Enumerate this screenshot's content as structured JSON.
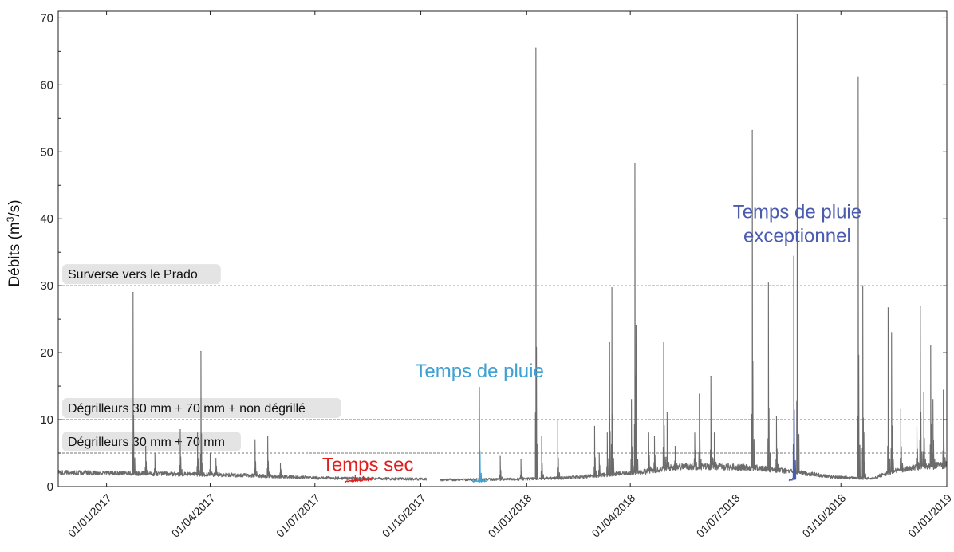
{
  "chart_data": {
    "type": "line",
    "title": "",
    "xlabel": "",
    "ylabel": "Débits (m³/s)",
    "ylabel_parts": {
      "pre": "Débits (m",
      "sup": "3",
      "post": "/s)"
    },
    "xlim": [
      "2016-11-20",
      "2019-01-01"
    ],
    "ylim": [
      0,
      71
    ],
    "y_ticks": [
      0,
      10,
      20,
      30,
      40,
      50,
      60,
      70
    ],
    "x_ticks": [
      {
        "date": "2017-01-01",
        "label": "01/01/2017"
      },
      {
        "date": "2017-04-01",
        "label": "01/04/2017"
      },
      {
        "date": "2017-07-01",
        "label": "01/07/2017"
      },
      {
        "date": "2017-10-01",
        "label": "01/10/2017"
      },
      {
        "date": "2018-01-01",
        "label": "01/01/2018"
      },
      {
        "date": "2018-04-01",
        "label": "01/04/2018"
      },
      {
        "date": "2018-07-01",
        "label": "01/07/2018"
      },
      {
        "date": "2018-10-01",
        "label": "01/10/2018"
      },
      {
        "date": "2019-01-01",
        "label": "01/01/2019"
      }
    ],
    "grid": false,
    "thresholds": [
      {
        "label": "Surverse vers le Prado",
        "value": 30
      },
      {
        "label": "Dégrilleurs 30 mm + 70 mm + non dégrillé",
        "value": 10
      },
      {
        "label": "Dégrilleurs 30 mm + 70 mm",
        "value": 5
      }
    ],
    "series": [
      {
        "color": "#6b6b6b",
        "segments": [
          {
            "start": "2016-11-20",
            "end": "2017-10-06",
            "base": [
              [
                0,
                2.1
              ],
              [
                0.3,
                1.9
              ],
              [
                0.5,
                1.7
              ],
              [
                0.7,
                1.3
              ],
              [
                0.85,
                1.2
              ],
              [
                1,
                1.1
              ]
            ],
            "spikes": [
              [
                "2017-01-24",
                29
              ],
              [
                "2017-02-04",
                6
              ],
              [
                "2017-02-12",
                5
              ],
              [
                "2017-03-06",
                8.5
              ],
              [
                "2017-03-21",
                8
              ],
              [
                "2017-03-24",
                20.2
              ],
              [
                "2017-04-01",
                5
              ],
              [
                "2017-04-06",
                4.2
              ],
              [
                "2017-05-10",
                7
              ],
              [
                "2017-05-21",
                7.5
              ],
              [
                "2017-06-01",
                3.5
              ]
            ]
          },
          {
            "start": "2017-10-18",
            "end": "2019-01-01",
            "base": [
              [
                0,
                1.0
              ],
              [
                0.15,
                1.1
              ],
              [
                0.25,
                1.3
              ],
              [
                0.3,
                1.6
              ],
              [
                0.4,
                2.2
              ],
              [
                0.47,
                3.0
              ],
              [
                0.55,
                3.0
              ],
              [
                0.62,
                2.8
              ],
              [
                0.7,
                2.2
              ],
              [
                0.78,
                1.4
              ],
              [
                0.85,
                1.2
              ],
              [
                0.9,
                2.4
              ],
              [
                0.95,
                3.0
              ],
              [
                1,
                3.2
              ]
            ],
            "spikes": [
              [
                "2017-12-09",
                4.5
              ],
              [
                "2017-12-27",
                4
              ],
              [
                "2018-01-09",
                65.5
              ],
              [
                "2018-01-14",
                7.5
              ],
              [
                "2018-01-28",
                10
              ],
              [
                "2018-03-01",
                9
              ],
              [
                "2018-03-05",
                5
              ],
              [
                "2018-03-12",
                8
              ],
              [
                "2018-03-14",
                21.5
              ],
              [
                "2018-03-16",
                29.7
              ],
              [
                "2018-04-02",
                13
              ],
              [
                "2018-04-05",
                48.3
              ],
              [
                "2018-04-06",
                24
              ],
              [
                "2018-04-17",
                8
              ],
              [
                "2018-04-22",
                7.5
              ],
              [
                "2018-04-30",
                21.5
              ],
              [
                "2018-05-03",
                11
              ],
              [
                "2018-05-10",
                6
              ],
              [
                "2018-05-27",
                8
              ],
              [
                "2018-05-31",
                13.8
              ],
              [
                "2018-06-10",
                16.5
              ],
              [
                "2018-06-13",
                8
              ],
              [
                "2018-07-16",
                53.2
              ],
              [
                "2018-07-30",
                30.4
              ],
              [
                "2018-08-06",
                10.5
              ],
              [
                "2018-08-24",
                70.5
              ],
              [
                "2018-10-16",
                61.2
              ],
              [
                "2018-10-20",
                30
              ],
              [
                "2018-10-21",
                8
              ],
              [
                "2018-11-11",
                26.7
              ],
              [
                "2018-11-14",
                23
              ],
              [
                "2018-11-22",
                11.5
              ],
              [
                "2018-12-06",
                9
              ],
              [
                "2018-12-09",
                26.9
              ],
              [
                "2018-12-12",
                14
              ],
              [
                "2018-12-18",
                21
              ],
              [
                "2018-12-20",
                13
              ],
              [
                "2018-12-29",
                14.4
              ]
            ]
          }
        ]
      },
      {
        "color": "#e02020",
        "segments": [
          {
            "start": "2017-07-27",
            "end": "2017-08-20",
            "base": [
              [
                0,
                0.7
              ],
              [
                0.5,
                0.9
              ],
              [
                1,
                1.1
              ]
            ],
            "spikes": [
              [
                "2017-08-05",
                1.6
              ],
              [
                "2017-08-12",
                1.5
              ]
            ]
          }
        ]
      },
      {
        "color": "#3ea0d3",
        "segments": [
          {
            "start": "2017-11-15",
            "end": "2017-11-27",
            "base": [
              [
                0,
                0.8
              ],
              [
                1,
                0.8
              ]
            ],
            "spikes": [
              [
                "2017-11-21",
                14.8
              ]
            ]
          }
        ]
      },
      {
        "color": "#4a5bb0",
        "segments": [
          {
            "start": "2018-08-17",
            "end": "2018-08-23",
            "base": [
              [
                0,
                1.0
              ],
              [
                1,
                1.2
              ]
            ],
            "spikes": [
              [
                "2018-08-21",
                34.4
              ]
            ]
          }
        ]
      }
    ],
    "annotations": [
      {
        "lines": [
          "Temps sec"
        ],
        "color": "#e02020",
        "x": "2017-08-16",
        "y": 2.3,
        "anchor": "middle"
      },
      {
        "lines": [
          "Temps de pluie"
        ],
        "color": "#3ea0d3",
        "x": "2017-11-21",
        "y": 16.3,
        "anchor": "middle"
      },
      {
        "lines": [
          "Temps de pluie",
          "exceptionnel"
        ],
        "color": "#4a5bb0",
        "x": "2018-08-24",
        "y": 36.5,
        "anchor": "middle"
      }
    ]
  }
}
